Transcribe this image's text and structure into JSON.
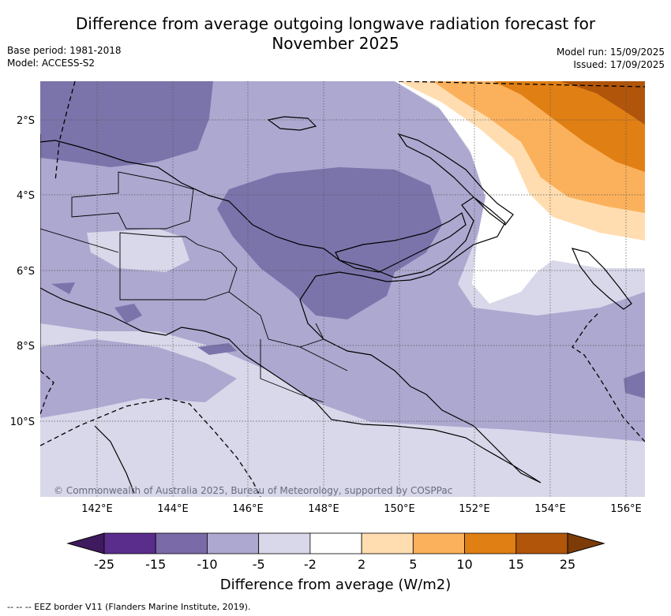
{
  "header": {
    "title_line1": "Difference from average outgoing longwave radiation forecast for",
    "title_line2": "November 2025",
    "base_period": "Base period: 1981-2018",
    "model": "Model: ACCESS-S2",
    "model_run": "Model run: 15/09/2025",
    "issued": "Issued: 17/09/2025"
  },
  "map": {
    "lat_labels": [
      "2°S",
      "4°S",
      "6°S",
      "8°S",
      "10°S"
    ],
    "lon_labels": [
      "142°E",
      "144°E",
      "146°E",
      "148°E",
      "150°E",
      "152°E",
      "154°E",
      "156°E"
    ],
    "copyright": "© Commonwealth of Australia 2025, Bureau of Meteorology, supported by COSPPac"
  },
  "colorbar": {
    "bounds": [
      "-25",
      "-15",
      "-10",
      "-5",
      "-2",
      "2",
      "5",
      "10",
      "15",
      "25"
    ],
    "colors": [
      "#3f1a5e",
      "#5a2d8c",
      "#7b6aa8",
      "#ada8d0",
      "#d8d8ea",
      "#ffffff",
      "#ffddb0",
      "#fbb15c",
      "#e07f14",
      "#b0550a",
      "#7d3c07"
    ],
    "title": "Difference from average (W/m2)"
  },
  "footnote": "--  --  -- EEZ border V11 (Flanders Marine Institute, 2019)."
}
